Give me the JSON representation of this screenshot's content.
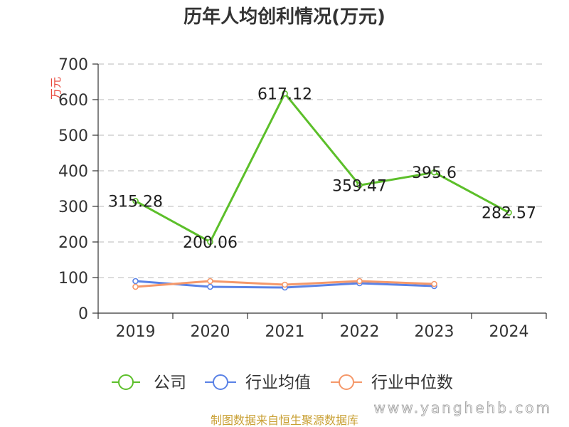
{
  "chart_data": {
    "type": "line",
    "title": "历年人均创利情况(万元)",
    "ylabel": "万元",
    "categories": [
      "2019",
      "2020",
      "2021",
      "2022",
      "2023",
      "2024"
    ],
    "ylim": [
      0,
      700
    ],
    "yticks": [
      0,
      100,
      200,
      300,
      400,
      500,
      600,
      700
    ],
    "grid": true,
    "legend_position": "bottom",
    "series": [
      {
        "name": "公司",
        "color": "#5cbf2a",
        "values": [
          315.28,
          200.06,
          617.12,
          359.47,
          395.6,
          282.57
        ],
        "labels": [
          "315.28",
          "200.06",
          "617.12",
          "359.47",
          "395.6",
          "282.57"
        ]
      },
      {
        "name": "行业均值",
        "color": "#5a82e6",
        "values": [
          90,
          74,
          72,
          84,
          76,
          null
        ]
      },
      {
        "name": "行业中位数",
        "color": "#f5986a",
        "values": [
          74,
          90,
          80,
          90,
          82,
          null
        ]
      }
    ]
  },
  "footer": {
    "source": "制图数据来自恒生聚源数据库"
  },
  "watermark": "www.yanghehb.com"
}
